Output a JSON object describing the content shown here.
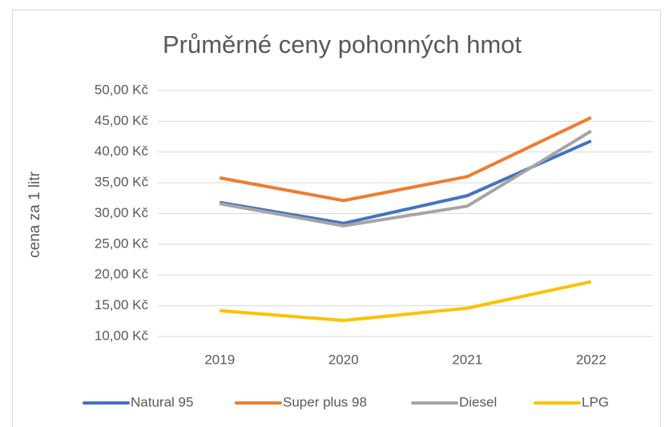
{
  "chart_data": {
    "type": "line",
    "title": "Průměrné ceny pohonných hmot",
    "y_label": "cena za 1 litr",
    "categories": [
      "2019",
      "2020",
      "2021",
      "2022"
    ],
    "series": [
      {
        "name": "Natural 95",
        "color": "#4472c4",
        "values": [
          31.8,
          28.4,
          32.9,
          41.8
        ]
      },
      {
        "name": "Super plus 98",
        "color": "#ed7d31",
        "values": [
          35.8,
          32.1,
          36.0,
          45.6
        ]
      },
      {
        "name": "Diesel",
        "color": "#a5a5a5",
        "values": [
          31.6,
          28.0,
          31.2,
          43.4
        ]
      },
      {
        "name": "LPG",
        "color": "#ffc000",
        "values": [
          14.2,
          12.6,
          14.6,
          18.9
        ]
      }
    ],
    "ylim": [
      10,
      50
    ],
    "yticks": [
      {
        "value": 10,
        "label": "10,00 Kč"
      },
      {
        "value": 15,
        "label": "15,00 Kč"
      },
      {
        "value": 20,
        "label": "20,00 Kč"
      },
      {
        "value": 25,
        "label": "25,00 Kč"
      },
      {
        "value": 30,
        "label": "30,00 Kč"
      },
      {
        "value": 35,
        "label": "35,00 Kč"
      },
      {
        "value": 40,
        "label": "40,00 Kč"
      },
      {
        "value": 45,
        "label": "45,00 Kč"
      },
      {
        "value": 50,
        "label": "50,00 Kč"
      }
    ],
    "grid": true,
    "legend": "bottom"
  }
}
